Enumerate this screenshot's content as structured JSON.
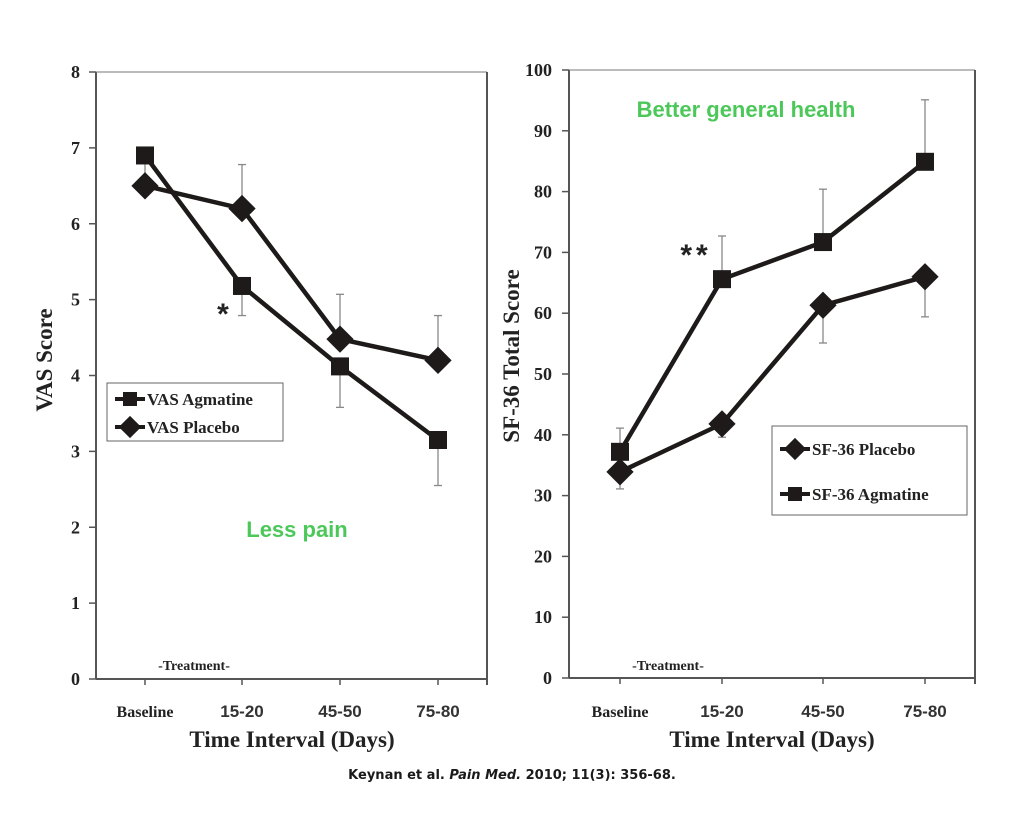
{
  "chart_data": [
    {
      "type": "line",
      "id": "vas",
      "title": "",
      "xlabel": "Time Interval (Days)",
      "ylabel": "VAS Score",
      "categories": [
        "Baseline",
        "15-20",
        "45-50",
        "75-80"
      ],
      "ylim": [
        0,
        8
      ],
      "yticks": [
        0,
        1,
        2,
        3,
        4,
        5,
        6,
        7,
        8
      ],
      "grid": false,
      "legend": {
        "position": "middle-left",
        "entries": [
          "VAS Agmatine",
          "VAS Placebo"
        ]
      },
      "series": [
        {
          "name": "VAS Agmatine",
          "marker": "square",
          "values": [
            6.9,
            5.18,
            4.12,
            3.15
          ],
          "error_bars": [
            null,
            {
              "dir": "down",
              "value": 4.79
            },
            {
              "dir": "down",
              "value": 3.58
            },
            {
              "dir": "down",
              "value": 2.55
            }
          ],
          "baseline_err": {
            "dir": "down",
            "value": 6.5
          }
        },
        {
          "name": "VAS Placebo",
          "marker": "diamond",
          "values": [
            6.5,
            6.2,
            4.48,
            4.2
          ],
          "error_bars": [
            null,
            {
              "dir": "up",
              "value": 6.78
            },
            {
              "dir": "up",
              "value": 5.07
            },
            {
              "dir": "up",
              "value": 4.79
            }
          ]
        }
      ],
      "annotations": [
        {
          "text": "*",
          "category": "15-20",
          "near_value": 4.85,
          "kind": "significance"
        },
        {
          "text": "Less pain",
          "kind": "callout",
          "color": "#4cc85a"
        },
        {
          "text": "-Treatment-",
          "kind": "label"
        }
      ]
    },
    {
      "type": "line",
      "id": "sf36",
      "title": "",
      "xlabel": "Time Interval (Days)",
      "ylabel": "SF-36 Total Score",
      "categories": [
        "Baseline",
        "15-20",
        "45-50",
        "75-80"
      ],
      "ylim": [
        0,
        100
      ],
      "yticks": [
        0,
        10,
        20,
        30,
        40,
        50,
        60,
        70,
        80,
        90,
        100
      ],
      "grid": false,
      "legend": {
        "position": "middle-right",
        "entries": [
          "SF-36 Placebo",
          "SF-36 Agmatine"
        ]
      },
      "series": [
        {
          "name": "SF-36 Placebo",
          "marker": "diamond",
          "values": [
            33.9,
            41.8,
            61.3,
            66.0
          ],
          "error_bars": [
            {
              "dir": "down",
              "value": 31.1
            },
            {
              "dir": "down",
              "value": 39.6
            },
            {
              "dir": "down",
              "value": 55.1
            },
            {
              "dir": "down",
              "value": 59.4
            }
          ]
        },
        {
          "name": "SF-36 Agmatine",
          "marker": "square",
          "values": [
            37.2,
            65.6,
            71.7,
            84.9
          ],
          "error_bars": [
            {
              "dir": "up",
              "value": 41.1
            },
            {
              "dir": "up",
              "value": 72.7
            },
            {
              "dir": "up",
              "value": 80.4
            },
            {
              "dir": "up",
              "value": 95.1
            }
          ]
        }
      ],
      "annotations": [
        {
          "text": "**",
          "category": "15-20",
          "near_value": 70.5,
          "kind": "significance"
        },
        {
          "text": "Better general health",
          "kind": "callout",
          "color": "#4cc85a"
        },
        {
          "text": "-Treatment-",
          "kind": "label"
        }
      ]
    }
  ],
  "citation": {
    "authors": "Keynan et al.",
    "journal": "Pain Med.",
    "details": "2010; 11(3): 356-68."
  }
}
